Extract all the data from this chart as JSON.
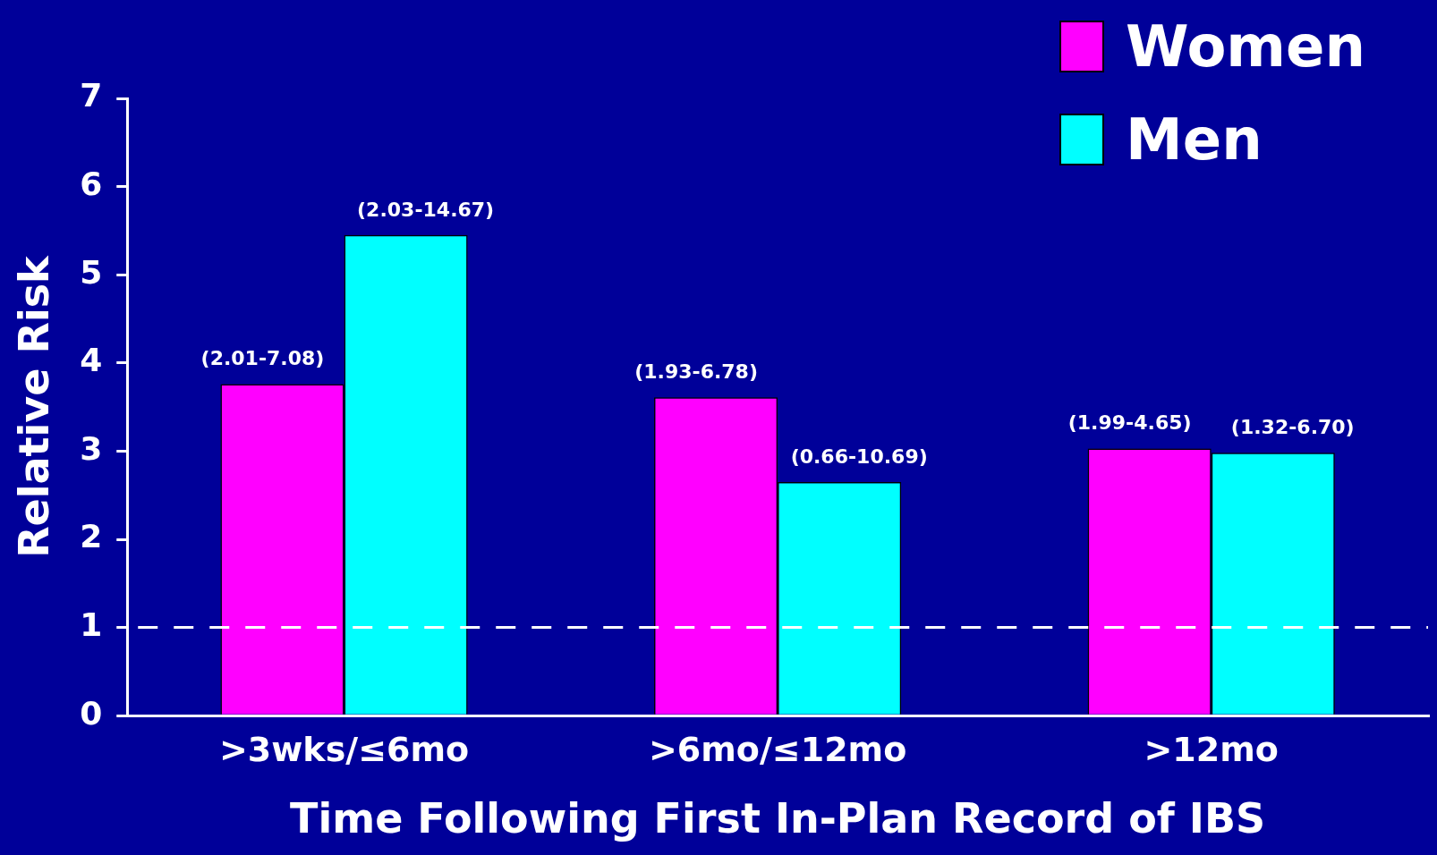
{
  "chart_data": {
    "type": "bar",
    "xlabel": "Time Following First In-Plan Record of IBS",
    "ylabel": "Relative Risk",
    "categories": [
      ">3wks/≤6mo",
      ">6mo/≤12mo",
      ">12mo"
    ],
    "series": [
      {
        "name": "Women",
        "color": "#ff00ff",
        "values": [
          3.76,
          3.61,
          3.03
        ],
        "value_labels": [
          "(2.01-7.08)",
          "(1.93-6.78)",
          "(1.99-4.65)"
        ]
      },
      {
        "name": "Men",
        "color": "#00ffff",
        "values": [
          5.45,
          2.65,
          2.98
        ],
        "value_labels": [
          "(2.03-14.67)",
          "(0.66-10.69)",
          "(1.32-6.70)"
        ]
      }
    ],
    "ylim": [
      0,
      7
    ],
    "yticks": [
      0,
      1,
      2,
      3,
      4,
      5,
      6,
      7
    ],
    "grid": false,
    "legend": "top right",
    "ref_lines": [
      {
        "axis": "y",
        "value": 1,
        "color": "#ffffff",
        "line_style": "dashed"
      }
    ]
  }
}
